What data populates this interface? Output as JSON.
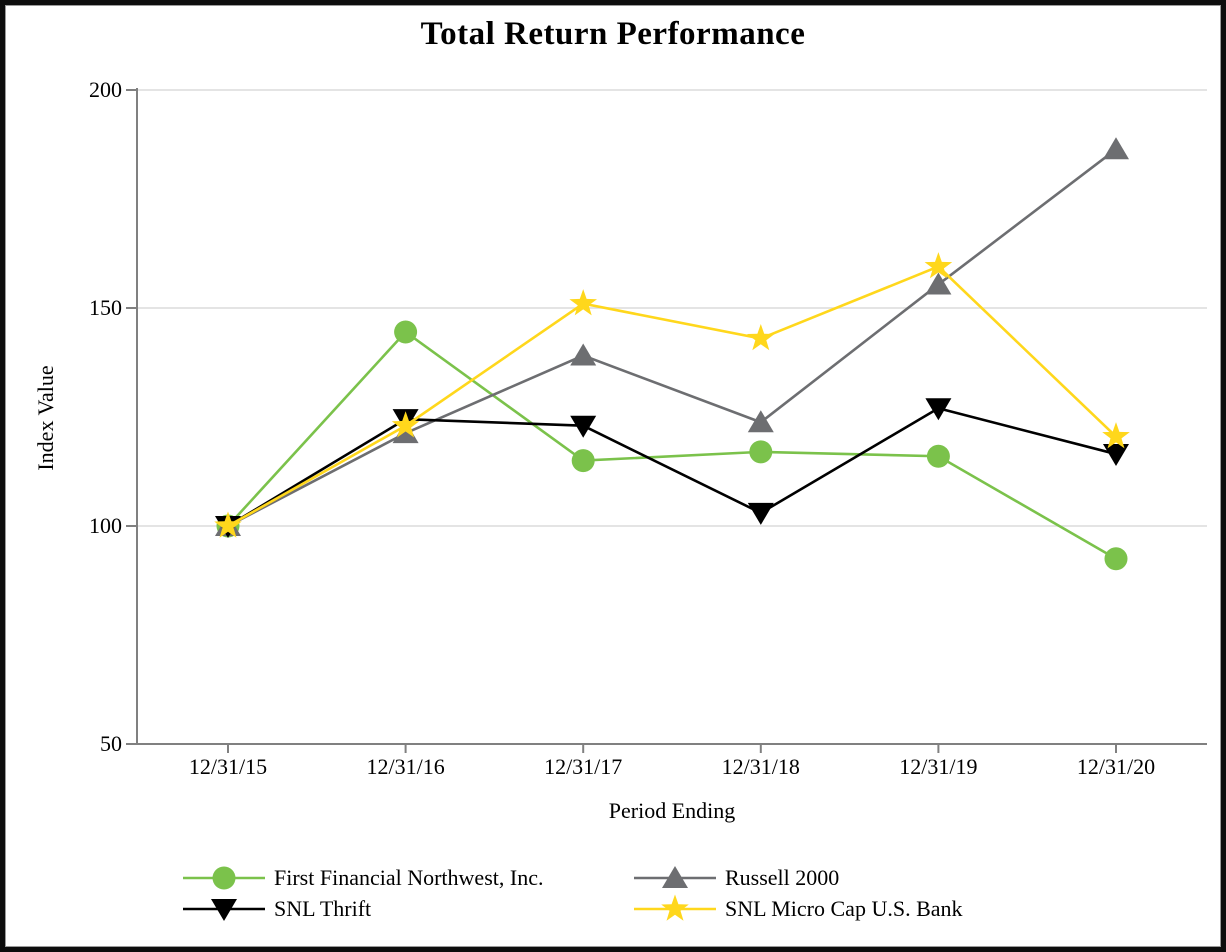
{
  "chart_data": {
    "type": "line",
    "title": "Total Return Performance",
    "xlabel": "Period Ending",
    "ylabel": "Index Value",
    "ylim": [
      50,
      200
    ],
    "yticks": [
      200,
      150,
      100,
      50
    ],
    "grid": "horizontal gridlines at 100, 150 and 200",
    "legend_position": "bottom, two columns",
    "categories": [
      "12/31/15",
      "12/31/16",
      "12/31/17",
      "12/31/18",
      "12/31/19",
      "12/31/20"
    ],
    "series": [
      {
        "name": "First Financial Northwest, Inc.",
        "color": "#7BC24B",
        "marker": "circle",
        "values": [
          100,
          144.5,
          115.0,
          117.0,
          116.0,
          92.5
        ]
      },
      {
        "name": "Russell 2000",
        "color": "#6D6E71",
        "marker": "triangle-up",
        "values": [
          100,
          121.3,
          139.1,
          123.8,
          155.4,
          186.4
        ]
      },
      {
        "name": "SNL Thrift",
        "color": "#000000",
        "marker": "triangle-down",
        "values": [
          100,
          124.5,
          123.0,
          103.0,
          127.0,
          116.5
        ]
      },
      {
        "name": "SNL Micro Cap U.S. Bank",
        "color": "#FFD71C",
        "marker": "star",
        "values": [
          100,
          123.0,
          151.0,
          143.0,
          159.5,
          120.5
        ]
      }
    ],
    "axis_color": "#808080",
    "gridline_color": "#dcdcdc"
  }
}
